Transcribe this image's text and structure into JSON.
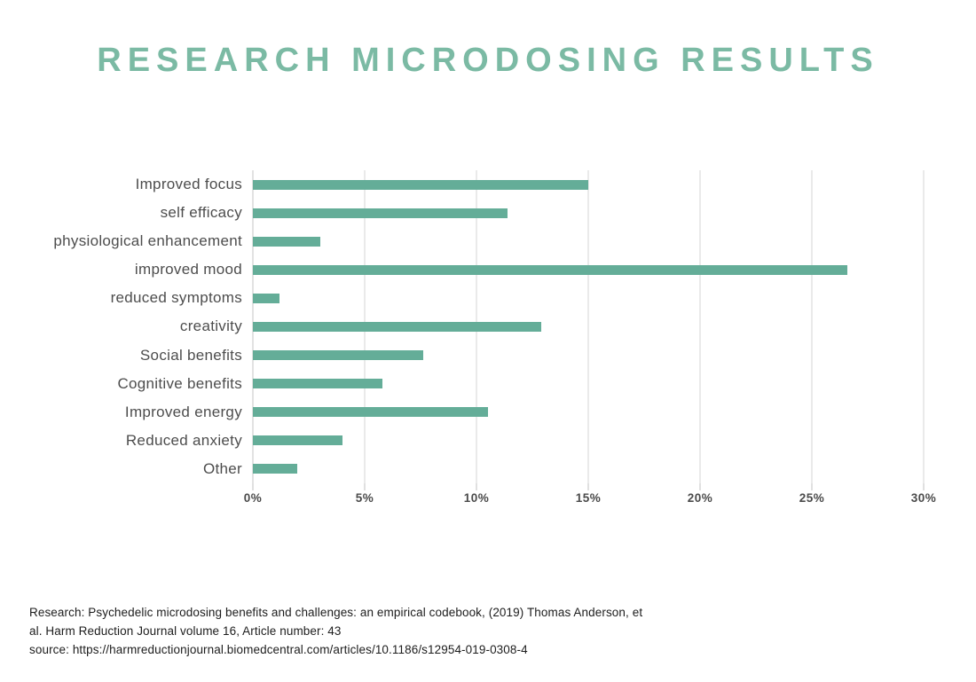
{
  "title": "RESEARCH MICRODOSING RESULTS",
  "chart_data": {
    "type": "bar",
    "orientation": "horizontal",
    "title": "RESEARCH MICRODOSING RESULTS",
    "categories": [
      "Improved focus",
      "self efficacy",
      "physiological enhancement",
      "improved mood",
      "reduced symptoms",
      "creativity",
      "Social benefits",
      "Cognitive benefits",
      "Improved energy",
      "Reduced anxiety",
      "Other"
    ],
    "values": [
      15.0,
      11.4,
      3.0,
      26.6,
      1.2,
      12.9,
      7.6,
      5.8,
      10.5,
      4.0,
      2.0
    ],
    "unit": "%",
    "xlabel": "",
    "ylabel": "",
    "xlim": [
      0,
      30
    ],
    "x_tick_step": 5,
    "x_ticks": [
      "0%",
      "5%",
      "10%",
      "15%",
      "20%",
      "25%",
      "30%"
    ],
    "grid": true,
    "legend": false,
    "bar_color": "#64ad98"
  },
  "footer": {
    "lines": [
      "Research: Psychedelic microdosing benefits and challenges: an empirical codebook, (2019) Thomas Anderson, et",
      "al. Harm Reduction Journal volume 16, Article number: 43",
      "source: https://harmreductionjournal.biomedcentral.com/articles/10.1186/s12954-019-0308-4"
    ]
  },
  "colors": {
    "title": "#7bbaa4",
    "bar": "#64ad98",
    "y_label_text": "#4d4d4d",
    "x_tick_text": "#4a4a4a",
    "grid_line": "#eaeaea",
    "axis_line": "#e2e2e2",
    "footer_text": "#1d1d1d",
    "background": "#ffffff"
  }
}
